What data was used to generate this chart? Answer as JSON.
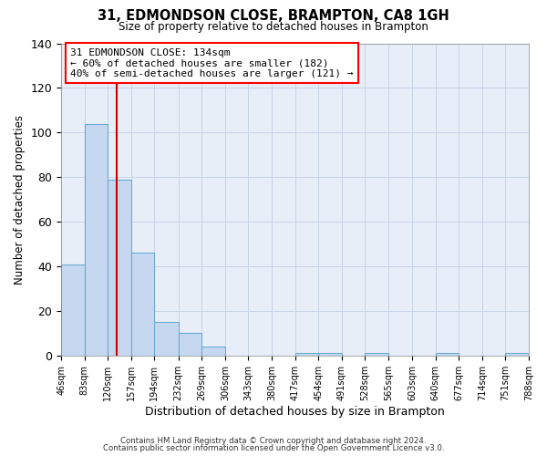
{
  "title": "31, EDMONDSON CLOSE, BRAMPTON, CA8 1GH",
  "subtitle": "Size of property relative to detached houses in Brampton",
  "xlabel": "Distribution of detached houses by size in Brampton",
  "ylabel": "Number of detached properties",
  "bin_edges": [
    46,
    83,
    120,
    157,
    194,
    232,
    269,
    306,
    343,
    380,
    417,
    454,
    491,
    528,
    565,
    603,
    640,
    677,
    714,
    751,
    788
  ],
  "bin_labels": [
    "46sqm",
    "83sqm",
    "120sqm",
    "157sqm",
    "194sqm",
    "232sqm",
    "269sqm",
    "306sqm",
    "343sqm",
    "380sqm",
    "417sqm",
    "454sqm",
    "491sqm",
    "528sqm",
    "565sqm",
    "603sqm",
    "640sqm",
    "677sqm",
    "714sqm",
    "751sqm",
    "788sqm"
  ],
  "counts": [
    41,
    104,
    79,
    46,
    15,
    10,
    4,
    0,
    0,
    0,
    1,
    1,
    0,
    1,
    0,
    0,
    1,
    0,
    0,
    1
  ],
  "bar_color": "#c5d8f0",
  "bar_edge_color": "#6aaad4",
  "vline_x": 134,
  "vline_color": "#cc0000",
  "ylim": [
    0,
    140
  ],
  "yticks": [
    0,
    20,
    40,
    60,
    80,
    100,
    120,
    140
  ],
  "annotation_title": "31 EDMONDSON CLOSE: 134sqm",
  "annotation_line1": "← 60% of detached houses are smaller (182)",
  "annotation_line2": "40% of semi-detached houses are larger (121) →",
  "footer_line1": "Contains HM Land Registry data © Crown copyright and database right 2024.",
  "footer_line2": "Contains public sector information licensed under the Open Government Licence v3.0.",
  "background_color": "#ffffff",
  "plot_bg_color": "#e8eef8",
  "grid_color": "#c8d4e8"
}
